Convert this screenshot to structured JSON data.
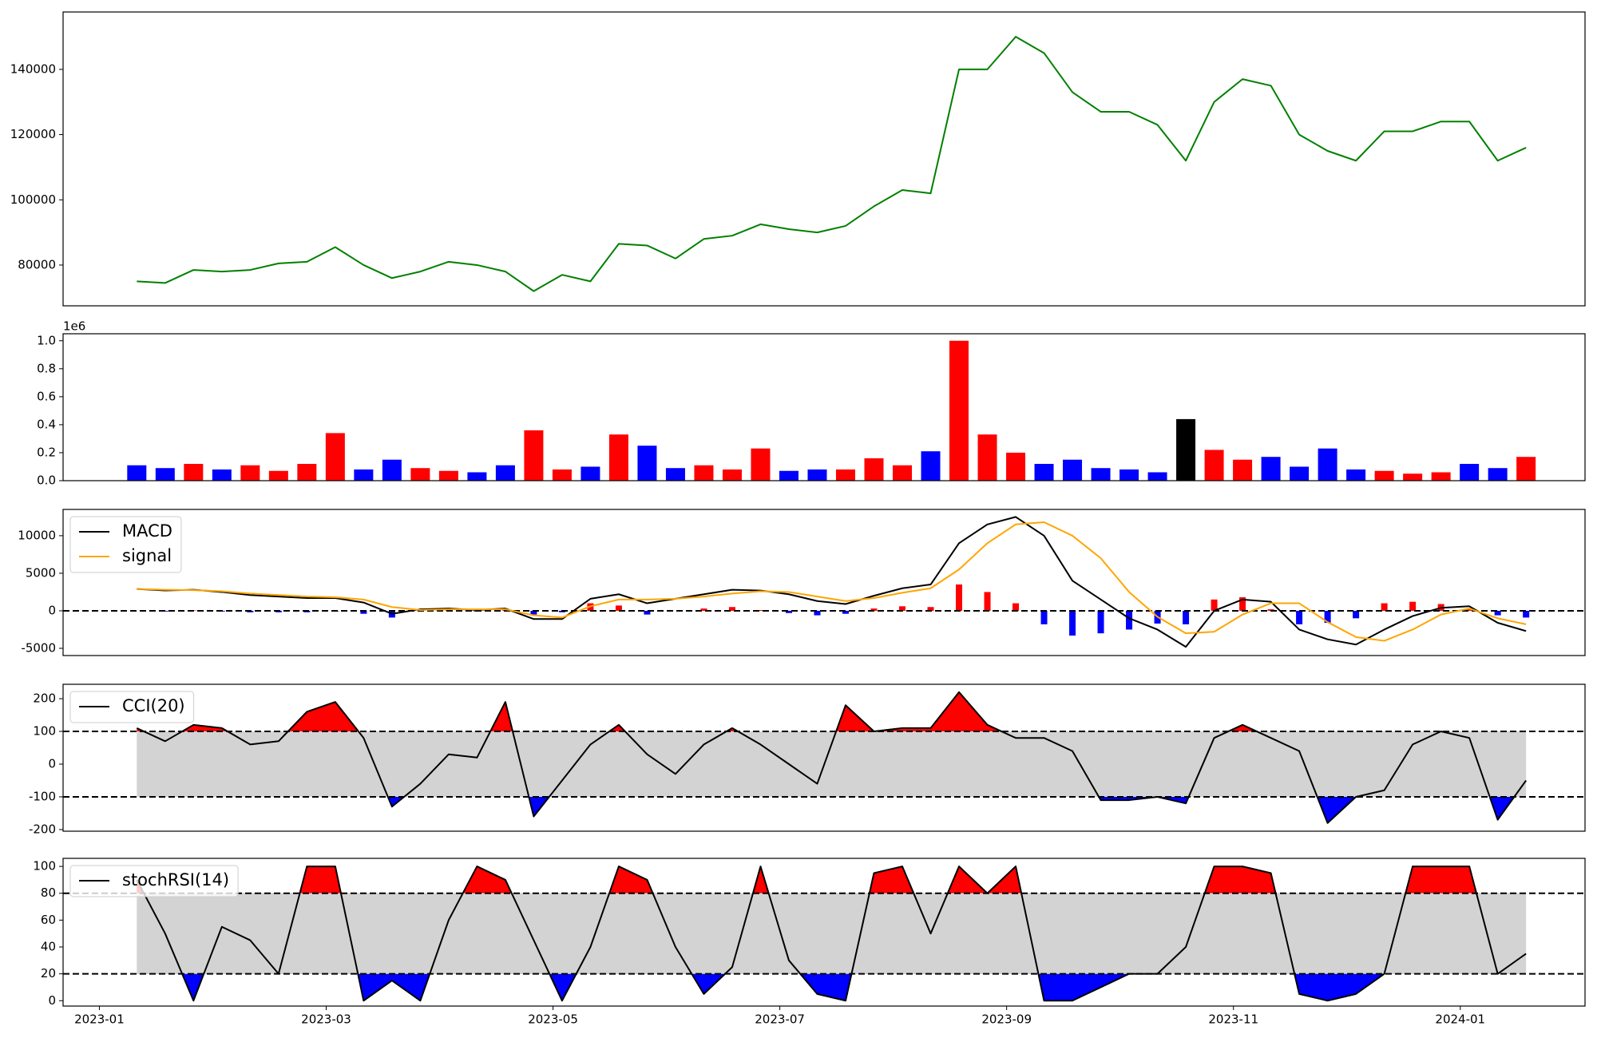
{
  "chart_data": [
    {
      "type": "line",
      "x": [
        0.33,
        0.58,
        0.83,
        1.08,
        1.33,
        1.58,
        1.83,
        2.08,
        2.33,
        2.58,
        2.83,
        3.08,
        3.33,
        3.58,
        3.83,
        4.08,
        4.33,
        4.58,
        4.83,
        5.08,
        5.33,
        5.58,
        5.83,
        6.08,
        6.33,
        6.58,
        6.83,
        7.08,
        7.33,
        7.58,
        7.83,
        8.08,
        8.33,
        8.58,
        8.83,
        9.08,
        9.33,
        9.58,
        9.83,
        10.08,
        10.33,
        10.58,
        10.83,
        11.08,
        11.33,
        11.58,
        11.83,
        12.08,
        12.33,
        12.58
      ],
      "series": [
        {
          "color": "#008000",
          "values": [
            75000,
            74500,
            78500,
            78000,
            78500,
            80500,
            81000,
            85500,
            80000,
            76000,
            78000,
            81000,
            80000,
            78000,
            72000,
            77000,
            75000,
            86500,
            86000,
            82000,
            88000,
            89000,
            92500,
            91000,
            90000,
            92000,
            98000,
            103000,
            102000,
            140000,
            140000,
            150000,
            145000,
            133000,
            127000,
            127000,
            123000,
            112000,
            130000,
            137000,
            135000,
            120000,
            115000,
            112000,
            121000,
            121000,
            124000,
            124000,
            112000,
            116000
          ]
        }
      ],
      "xlim": [
        -0.32,
        13.1
      ],
      "ylim": [
        67500,
        157600
      ],
      "yticks": [
        80000,
        100000,
        120000,
        140000
      ]
    },
    {
      "type": "bar",
      "x": [
        0.33,
        0.58,
        0.83,
        1.08,
        1.33,
        1.58,
        1.83,
        2.08,
        2.33,
        2.58,
        2.83,
        3.08,
        3.33,
        3.58,
        3.83,
        4.08,
        4.33,
        4.58,
        4.83,
        5.08,
        5.33,
        5.58,
        5.83,
        6.08,
        6.33,
        6.58,
        6.83,
        7.08,
        7.33,
        7.58,
        7.83,
        8.08,
        8.33,
        8.58,
        8.83,
        9.08,
        9.33,
        9.58,
        9.83,
        10.08,
        10.33,
        10.58,
        10.83,
        11.08,
        11.33,
        11.58,
        11.83,
        12.08,
        12.33,
        12.58
      ],
      "values": [
        110000,
        90000,
        120000,
        80000,
        110000,
        70000,
        120000,
        340000,
        80000,
        150000,
        90000,
        70000,
        60000,
        110000,
        360000,
        80000,
        100000,
        330000,
        250000,
        90000,
        110000,
        80000,
        230000,
        70000,
        80000,
        80000,
        160000,
        110000,
        210000,
        1000000,
        330000,
        200000,
        120000,
        150000,
        90000,
        80000,
        60000,
        440000,
        220000,
        150000,
        170000,
        100000,
        230000,
        80000,
        70000,
        50000,
        60000,
        120000,
        90000,
        170000
      ],
      "colors": [
        "#0000ff",
        "#0000ff",
        "#ff0000",
        "#0000ff",
        "#ff0000",
        "#ff0000",
        "#ff0000",
        "#ff0000",
        "#0000ff",
        "#0000ff",
        "#ff0000",
        "#ff0000",
        "#0000ff",
        "#0000ff",
        "#ff0000",
        "#ff0000",
        "#0000ff",
        "#ff0000",
        "#0000ff",
        "#0000ff",
        "#ff0000",
        "#ff0000",
        "#ff0000",
        "#0000ff",
        "#0000ff",
        "#ff0000",
        "#ff0000",
        "#ff0000",
        "#0000ff",
        "#ff0000",
        "#ff0000",
        "#ff0000",
        "#0000ff",
        "#0000ff",
        "#0000ff",
        "#0000ff",
        "#0000ff",
        "#000000",
        "#ff0000",
        "#ff0000",
        "#0000ff",
        "#0000ff",
        "#0000ff",
        "#0000ff",
        "#ff0000",
        "#ff0000",
        "#ff0000",
        "#0000ff",
        "#0000ff",
        "#ff0000"
      ],
      "offset_label": "1e6",
      "xlim": [
        -0.32,
        13.1
      ],
      "ylim": [
        0,
        1050000
      ],
      "yticks": [
        {
          "value": 0,
          "label": "0.0"
        },
        {
          "value": 200000,
          "label": "0.2"
        },
        {
          "value": 400000,
          "label": "0.4"
        },
        {
          "value": 600000,
          "label": "0.6"
        },
        {
          "value": 800000,
          "label": "0.8"
        },
        {
          "value": 1000000,
          "label": "1.0"
        }
      ]
    },
    {
      "type": "line",
      "x": [
        0.33,
        0.58,
        0.83,
        1.08,
        1.33,
        1.58,
        1.83,
        2.08,
        2.33,
        2.58,
        2.83,
        3.08,
        3.33,
        3.58,
        3.83,
        4.08,
        4.33,
        4.58,
        4.83,
        5.08,
        5.33,
        5.58,
        5.83,
        6.08,
        6.33,
        6.58,
        6.83,
        7.08,
        7.33,
        7.58,
        7.83,
        8.08,
        8.33,
        8.58,
        8.83,
        9.08,
        9.33,
        9.58,
        9.83,
        10.08,
        10.33,
        10.58,
        10.83,
        11.08,
        11.33,
        11.58,
        11.83,
        12.08,
        12.33,
        12.58
      ],
      "series": [
        {
          "name": "MACD",
          "color": "#000000",
          "values": [
            2900,
            2700,
            2800,
            2500,
            2100,
            1900,
            1700,
            1700,
            1100,
            -400,
            200,
            300,
            100,
            300,
            -1100,
            -1100,
            1600,
            2200,
            1000,
            1600,
            2200,
            2800,
            2700,
            2200,
            1300,
            900,
            2000,
            3000,
            3500,
            9000,
            11500,
            12500,
            10000,
            4000,
            1500,
            -1000,
            -2500,
            -4800,
            0,
            1500,
            1200,
            -2500,
            -3800,
            -4500,
            -2500,
            -700,
            400,
            600,
            -1600,
            -2700
          ]
        },
        {
          "name": "signal",
          "color": "#ffa500",
          "values": [
            2900,
            2800,
            2750,
            2600,
            2300,
            2100,
            1900,
            1800,
            1500,
            500,
            100,
            200,
            200,
            200,
            -600,
            -900,
            600,
            1500,
            1500,
            1600,
            1900,
            2300,
            2600,
            2500,
            1900,
            1300,
            1700,
            2400,
            3000,
            5500,
            9000,
            11500,
            11800,
            10000,
            7000,
            2500,
            -800,
            -3000,
            -2800,
            -500,
            1000,
            1000,
            -1500,
            -3500,
            -4000,
            -2500,
            -500,
            300,
            -1000,
            -1800
          ]
        }
      ],
      "histogram": {
        "values": [
          0,
          -100,
          50,
          -100,
          -200,
          -200,
          -200,
          -100,
          -400,
          -900,
          100,
          100,
          -100,
          100,
          -500,
          -200,
          1000,
          700,
          -500,
          0,
          300,
          500,
          100,
          -300,
          -600,
          -400,
          300,
          600,
          500,
          3500,
          2500,
          1000,
          -1800,
          -3300,
          -3000,
          -2500,
          -1700,
          -1800,
          1500,
          1800,
          200,
          -1800,
          -1600,
          -1000,
          1000,
          1200,
          900,
          300,
          -600,
          -900
        ],
        "positive_color": "#ff0000",
        "negative_color": "#0000ff"
      },
      "levels": [
        0
      ],
      "legend": "upper left",
      "xlim": [
        -0.32,
        13.1
      ],
      "ylim": [
        -5960,
        13500
      ],
      "yticks": [
        -5000,
        0,
        5000,
        10000
      ]
    },
    {
      "type": "line",
      "x": [
        0.33,
        0.58,
        0.83,
        1.08,
        1.33,
        1.58,
        1.83,
        2.08,
        2.33,
        2.58,
        2.83,
        3.08,
        3.33,
        3.58,
        3.83,
        4.08,
        4.33,
        4.58,
        4.83,
        5.08,
        5.33,
        5.58,
        5.83,
        6.08,
        6.33,
        6.58,
        6.83,
        7.08,
        7.33,
        7.58,
        7.83,
        8.08,
        8.33,
        8.58,
        8.83,
        9.08,
        9.33,
        9.58,
        9.83,
        10.08,
        10.33,
        10.58,
        10.83,
        11.08,
        11.33,
        11.58,
        11.83,
        12.08,
        12.33,
        12.58
      ],
      "series": [
        {
          "name": "CCI(20)",
          "color": "#000000",
          "values": [
            110,
            70,
            120,
            110,
            60,
            70,
            160,
            190,
            80,
            -130,
            -60,
            30,
            20,
            190,
            -160,
            -50,
            60,
            120,
            30,
            -30,
            60,
            110,
            60,
            0,
            -60,
            180,
            100,
            110,
            110,
            220,
            120,
            80,
            80,
            40,
            -110,
            -110,
            -100,
            -120,
            80,
            120,
            80,
            40,
            -180,
            -100,
            -80,
            60,
            100,
            80,
            -170,
            -50
          ]
        }
      ],
      "levels": [
        100,
        -100
      ],
      "band_color": "#d3d3d3",
      "upper_fill": "#ff0000",
      "lower_fill": "#0000ff",
      "legend": "upper left",
      "xlim": [
        -0.32,
        13.1
      ],
      "ylim": [
        -205,
        244
      ],
      "yticks": [
        -200,
        -100,
        0,
        100,
        200
      ]
    },
    {
      "type": "line",
      "x": [
        0.33,
        0.58,
        0.83,
        1.08,
        1.33,
        1.58,
        1.83,
        2.08,
        2.33,
        2.58,
        2.83,
        3.08,
        3.33,
        3.58,
        3.83,
        4.08,
        4.33,
        4.58,
        4.83,
        5.08,
        5.33,
        5.58,
        5.83,
        6.08,
        6.33,
        6.58,
        6.83,
        7.08,
        7.33,
        7.58,
        7.83,
        8.08,
        8.33,
        8.58,
        8.83,
        9.08,
        9.33,
        9.58,
        9.83,
        10.08,
        10.33,
        10.58,
        10.83,
        11.08,
        11.33,
        11.58,
        11.83,
        12.08,
        12.33,
        12.58
      ],
      "series": [
        {
          "name": "stochRSI(14)",
          "color": "#000000",
          "values": [
            90,
            50,
            0,
            55,
            45,
            20,
            100,
            100,
            0,
            15,
            0,
            60,
            100,
            90,
            45,
            0,
            40,
            100,
            90,
            40,
            5,
            25,
            100,
            30,
            5,
            0,
            95,
            100,
            50,
            100,
            80,
            100,
            0,
            0,
            10,
            20,
            20,
            40,
            100,
            100,
            95,
            5,
            0,
            5,
            20,
            100,
            100,
            100,
            20,
            35
          ]
        }
      ],
      "levels": [
        80,
        20
      ],
      "band_color": "#d3d3d3",
      "upper_fill": "#ff0000",
      "lower_fill": "#0000ff",
      "legend": "upper left",
      "xlim": [
        -0.32,
        13.1
      ],
      "ylim": [
        -4,
        106
      ],
      "yticks": [
        0,
        20,
        40,
        60,
        80,
        100
      ],
      "xticks": [
        {
          "value": 0,
          "label": "2023-01"
        },
        {
          "value": 2,
          "label": "2023-03"
        },
        {
          "value": 4,
          "label": "2023-05"
        },
        {
          "value": 6,
          "label": "2023-07"
        },
        {
          "value": 8,
          "label": "2023-09"
        },
        {
          "value": 10,
          "label": "2023-11"
        },
        {
          "value": 12,
          "label": "2024-01"
        }
      ]
    }
  ]
}
